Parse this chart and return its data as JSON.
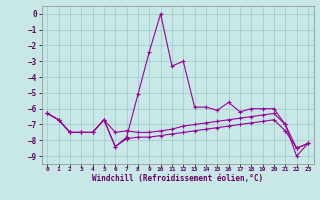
{
  "title": "",
  "xlabel": "Windchill (Refroidissement éolien,°C)",
  "background_color": "#c8e8e8",
  "grid_color": "#a0c8c8",
  "line_color": "#990099",
  "x_ticks": [
    0,
    1,
    2,
    3,
    4,
    5,
    6,
    7,
    8,
    9,
    10,
    11,
    12,
    13,
    14,
    15,
    16,
    17,
    18,
    19,
    20,
    21,
    22,
    23
  ],
  "y_ticks": [
    0,
    -1,
    -2,
    -3,
    -4,
    -5,
    -6,
    -7,
    -8,
    -9
  ],
  "ylim": [
    -9.5,
    0.5
  ],
  "xlim": [
    -0.5,
    23.5
  ],
  "line1": [
    -6.3,
    -6.7,
    -7.5,
    -7.5,
    -7.5,
    -6.7,
    -8.4,
    -7.8,
    -5.1,
    -2.4,
    0.0,
    -3.3,
    -3.0,
    -5.9,
    -5.9,
    -6.1,
    -5.6,
    -6.2,
    -6.0,
    -6.0,
    -6.0,
    -7.0,
    -9.0,
    -8.2
  ],
  "line2": [
    -6.3,
    -6.7,
    -7.5,
    -7.5,
    -7.5,
    -6.7,
    -7.5,
    -7.4,
    -7.5,
    -7.5,
    -7.4,
    -7.3,
    -7.1,
    -7.0,
    -6.9,
    -6.8,
    -6.7,
    -6.6,
    -6.5,
    -6.4,
    -6.3,
    -7.0,
    -8.5,
    -8.2
  ],
  "line3": [
    -6.3,
    -6.7,
    -7.5,
    -7.5,
    -7.5,
    -6.7,
    -8.4,
    -7.9,
    -7.8,
    -7.8,
    -7.7,
    -7.6,
    -7.5,
    -7.4,
    -7.3,
    -7.2,
    -7.1,
    -7.0,
    -6.9,
    -6.8,
    -6.7,
    -7.4,
    -8.5,
    -8.2
  ]
}
